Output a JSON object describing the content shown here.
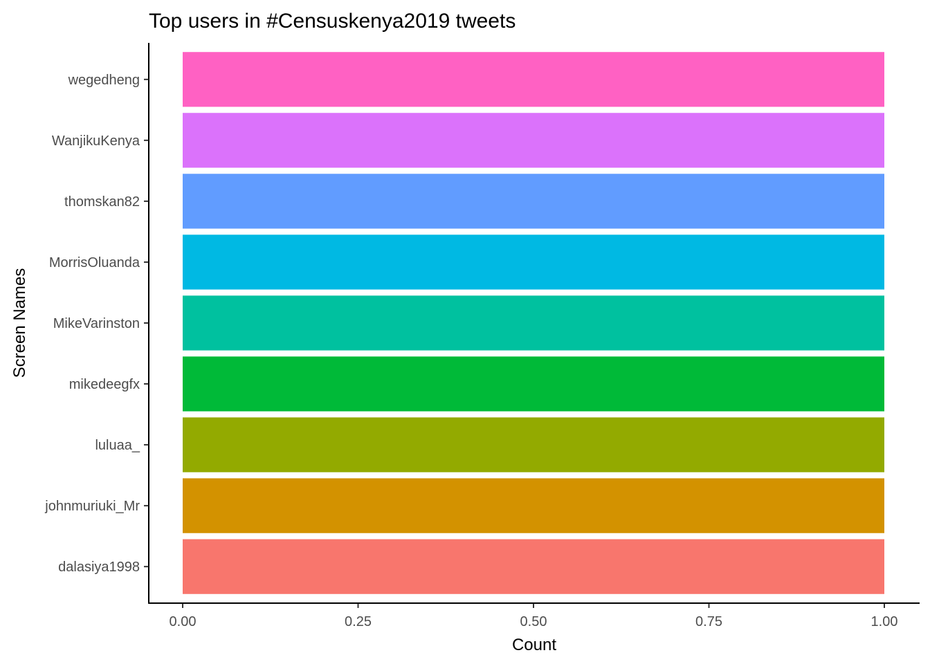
{
  "chart_data": {
    "type": "bar",
    "orientation": "horizontal",
    "title": "Top users in #Censuskenya2019 tweets",
    "xlabel": "Count",
    "ylabel": "Screen Names",
    "xlim": [
      0,
      1
    ],
    "x_ticks": [
      "0.00",
      "0.25",
      "0.50",
      "0.75",
      "1.00"
    ],
    "x_tick_values": [
      0,
      0.25,
      0.5,
      0.75,
      1
    ],
    "grid": false,
    "legend": "none",
    "categories": [
      "dalasiya1998",
      "johnmuriuki_Mr",
      "luluaa_",
      "mikedeegfx",
      "MikeVarinston",
      "MorrisOluanda",
      "thomskan82",
      "WanjikuKenya",
      "wegedheng"
    ],
    "values": [
      1,
      1,
      1,
      1,
      1,
      1,
      1,
      1,
      1
    ],
    "colors": [
      "#F8766D",
      "#D39200",
      "#93AA00",
      "#00BA38",
      "#00C19F",
      "#00B9E3",
      "#619CFF",
      "#DB72FB",
      "#FF61C3"
    ]
  }
}
